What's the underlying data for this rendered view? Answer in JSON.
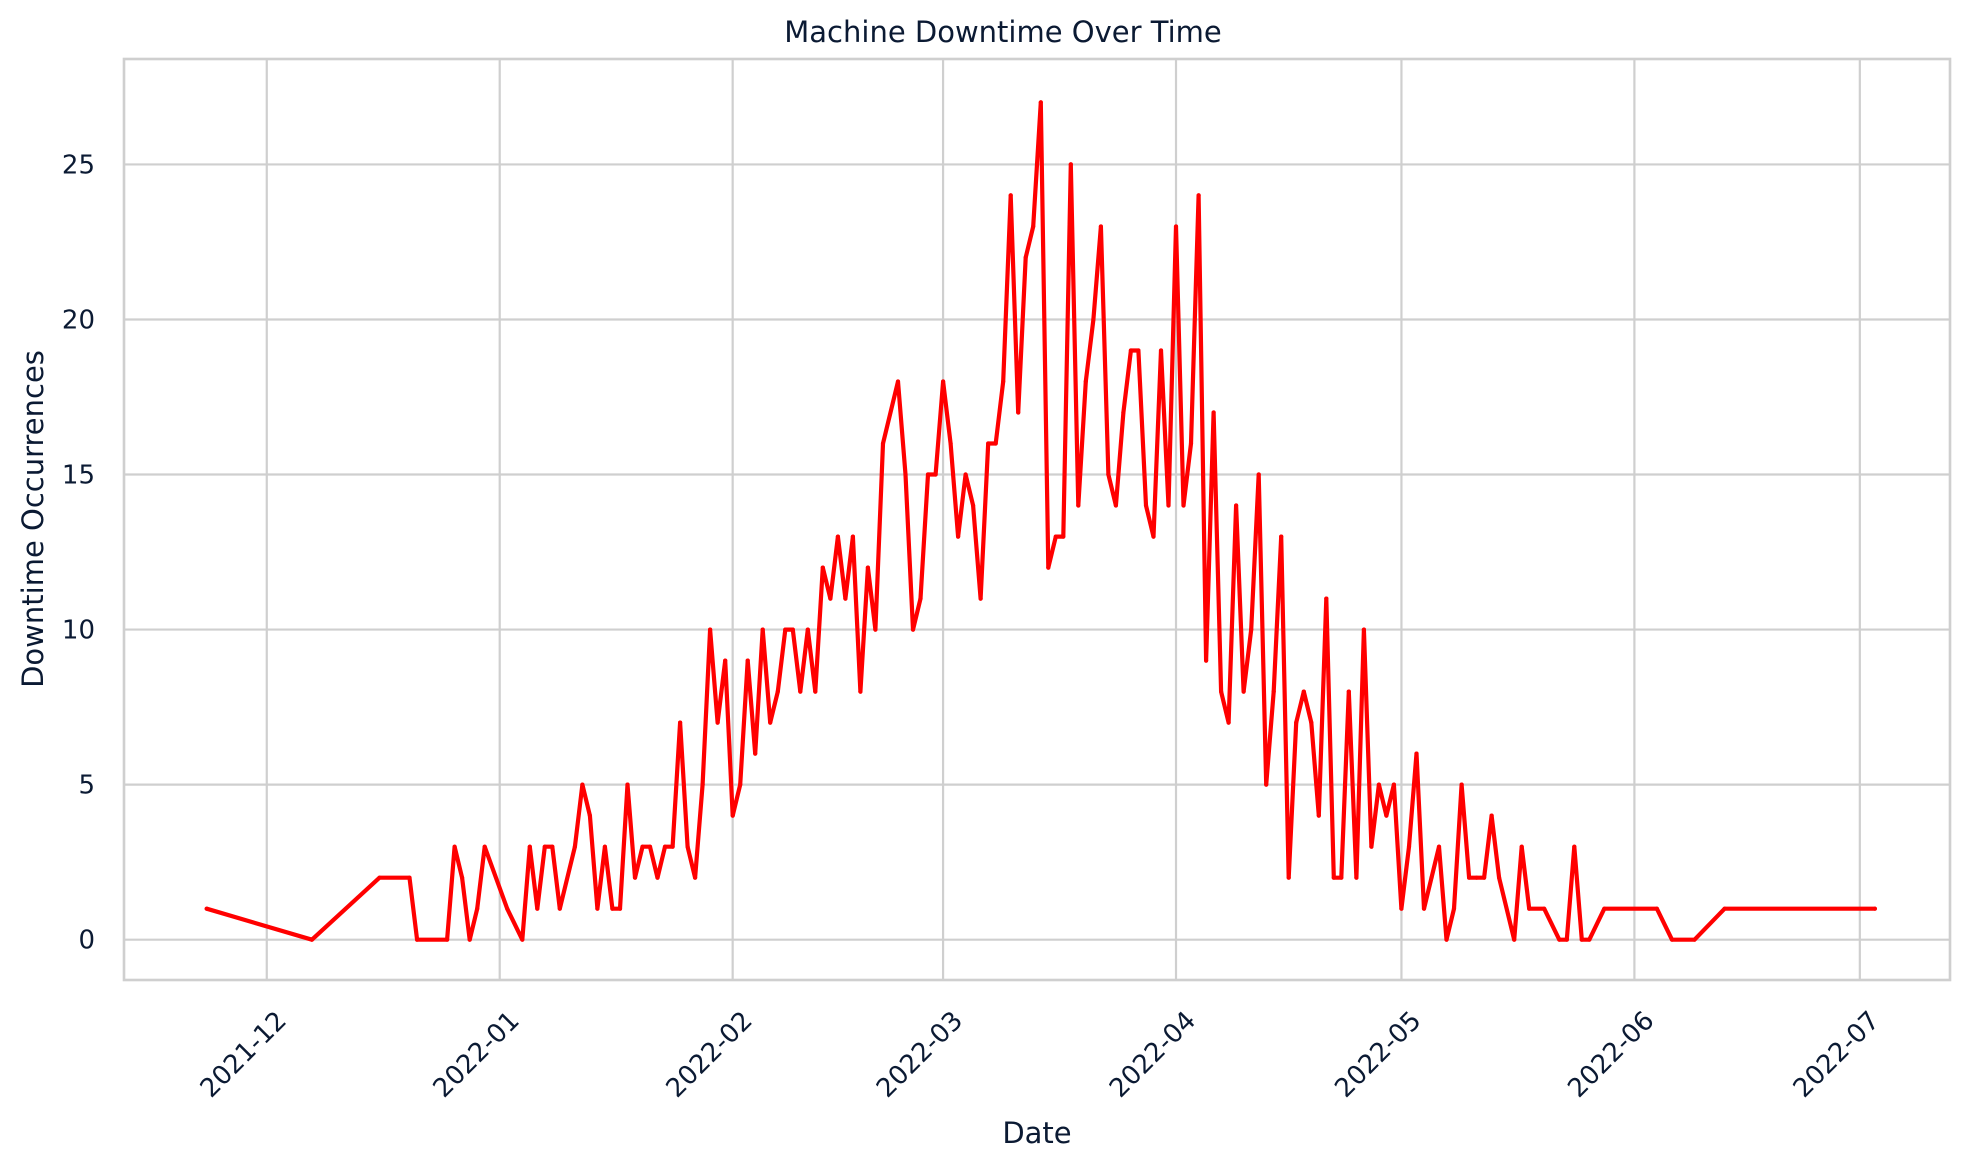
{
  "chart_data": {
    "type": "line",
    "title": "Machine Downtime Over Time",
    "xlabel": "Date",
    "ylabel": "Downtime Occurrences",
    "x_range": [
      "2021-11-12",
      "2022-07-13"
    ],
    "x_ticks": [
      {
        "date": "2021-12-01",
        "label": "2021-12"
      },
      {
        "date": "2022-01-01",
        "label": "2022-01"
      },
      {
        "date": "2022-02-01",
        "label": "2022-02"
      },
      {
        "date": "2022-03-01",
        "label": "2022-03"
      },
      {
        "date": "2022-04-01",
        "label": "2022-04"
      },
      {
        "date": "2022-05-01",
        "label": "2022-05"
      },
      {
        "date": "2022-06-01",
        "label": "2022-06"
      },
      {
        "date": "2022-07-01",
        "label": "2022-07"
      }
    ],
    "ylim": [
      -1.3,
      28.4
    ],
    "y_ticks": [
      0,
      5,
      10,
      15,
      20,
      25
    ],
    "grid": true,
    "series": [
      {
        "name": "Downtime Occurrences",
        "color": "#ff0000",
        "points": [
          [
            "2021-11-23",
            1
          ],
          [
            "2021-12-07",
            0
          ],
          [
            "2021-12-16",
            2
          ],
          [
            "2021-12-20",
            2
          ],
          [
            "2021-12-21",
            0
          ],
          [
            "2021-12-25",
            0
          ],
          [
            "2021-12-26",
            3
          ],
          [
            "2021-12-27",
            2
          ],
          [
            "2021-12-28",
            0
          ],
          [
            "2021-12-29",
            1
          ],
          [
            "2021-12-30",
            3
          ],
          [
            "2022-01-02",
            1
          ],
          [
            "2022-01-04",
            0
          ],
          [
            "2022-01-05",
            3
          ],
          [
            "2022-01-06",
            1
          ],
          [
            "2022-01-07",
            3
          ],
          [
            "2022-01-08",
            3
          ],
          [
            "2022-01-09",
            1
          ],
          [
            "2022-01-11",
            3
          ],
          [
            "2022-01-12",
            5
          ],
          [
            "2022-01-13",
            4
          ],
          [
            "2022-01-14",
            1
          ],
          [
            "2022-01-15",
            3
          ],
          [
            "2022-01-16",
            1
          ],
          [
            "2022-01-17",
            1
          ],
          [
            "2022-01-18",
            5
          ],
          [
            "2022-01-19",
            2
          ],
          [
            "2022-01-20",
            3
          ],
          [
            "2022-01-21",
            3
          ],
          [
            "2022-01-22",
            2
          ],
          [
            "2022-01-23",
            3
          ],
          [
            "2022-01-24",
            3
          ],
          [
            "2022-01-25",
            7
          ],
          [
            "2022-01-26",
            3
          ],
          [
            "2022-01-27",
            2
          ],
          [
            "2022-01-28",
            5
          ],
          [
            "2022-01-29",
            10
          ],
          [
            "2022-01-30",
            7
          ],
          [
            "2022-01-31",
            9
          ],
          [
            "2022-02-01",
            4
          ],
          [
            "2022-02-02",
            5
          ],
          [
            "2022-02-03",
            9
          ],
          [
            "2022-02-04",
            6
          ],
          [
            "2022-02-05",
            10
          ],
          [
            "2022-02-06",
            7
          ],
          [
            "2022-02-07",
            8
          ],
          [
            "2022-02-08",
            10
          ],
          [
            "2022-02-09",
            10
          ],
          [
            "2022-02-10",
            8
          ],
          [
            "2022-02-11",
            10
          ],
          [
            "2022-02-12",
            8
          ],
          [
            "2022-02-13",
            12
          ],
          [
            "2022-02-14",
            11
          ],
          [
            "2022-02-15",
            13
          ],
          [
            "2022-02-16",
            11
          ],
          [
            "2022-02-17",
            13
          ],
          [
            "2022-02-18",
            8
          ],
          [
            "2022-02-19",
            12
          ],
          [
            "2022-02-20",
            10
          ],
          [
            "2022-02-21",
            16
          ],
          [
            "2022-02-23",
            18
          ],
          [
            "2022-02-24",
            15
          ],
          [
            "2022-02-25",
            10
          ],
          [
            "2022-02-26",
            11
          ],
          [
            "2022-02-27",
            15
          ],
          [
            "2022-02-28",
            15
          ],
          [
            "2022-03-01",
            18
          ],
          [
            "2022-03-02",
            16
          ],
          [
            "2022-03-03",
            13
          ],
          [
            "2022-03-04",
            15
          ],
          [
            "2022-03-05",
            14
          ],
          [
            "2022-03-06",
            11
          ],
          [
            "2022-03-07",
            16
          ],
          [
            "2022-03-08",
            16
          ],
          [
            "2022-03-09",
            18
          ],
          [
            "2022-03-10",
            24
          ],
          [
            "2022-03-11",
            17
          ],
          [
            "2022-03-12",
            22
          ],
          [
            "2022-03-13",
            23
          ],
          [
            "2022-03-14",
            27
          ],
          [
            "2022-03-15",
            12
          ],
          [
            "2022-03-16",
            13
          ],
          [
            "2022-03-17",
            13
          ],
          [
            "2022-03-18",
            25
          ],
          [
            "2022-03-19",
            14
          ],
          [
            "2022-03-20",
            18
          ],
          [
            "2022-03-21",
            20
          ],
          [
            "2022-03-22",
            23
          ],
          [
            "2022-03-23",
            15
          ],
          [
            "2022-03-24",
            14
          ],
          [
            "2022-03-25",
            17
          ],
          [
            "2022-03-26",
            19
          ],
          [
            "2022-03-27",
            19
          ],
          [
            "2022-03-28",
            14
          ],
          [
            "2022-03-29",
            13
          ],
          [
            "2022-03-30",
            19
          ],
          [
            "2022-03-31",
            14
          ],
          [
            "2022-04-01",
            23
          ],
          [
            "2022-04-02",
            14
          ],
          [
            "2022-04-03",
            16
          ],
          [
            "2022-04-04",
            24
          ],
          [
            "2022-04-05",
            9
          ],
          [
            "2022-04-06",
            17
          ],
          [
            "2022-04-07",
            8
          ],
          [
            "2022-04-08",
            7
          ],
          [
            "2022-04-09",
            14
          ],
          [
            "2022-04-10",
            8
          ],
          [
            "2022-04-11",
            10
          ],
          [
            "2022-04-12",
            15
          ],
          [
            "2022-04-13",
            5
          ],
          [
            "2022-04-14",
            8
          ],
          [
            "2022-04-15",
            13
          ],
          [
            "2022-04-16",
            2
          ],
          [
            "2022-04-17",
            7
          ],
          [
            "2022-04-18",
            8
          ],
          [
            "2022-04-19",
            7
          ],
          [
            "2022-04-20",
            4
          ],
          [
            "2022-04-21",
            11
          ],
          [
            "2022-04-22",
            2
          ],
          [
            "2022-04-23",
            2
          ],
          [
            "2022-04-24",
            8
          ],
          [
            "2022-04-25",
            2
          ],
          [
            "2022-04-26",
            10
          ],
          [
            "2022-04-27",
            3
          ],
          [
            "2022-04-28",
            5
          ],
          [
            "2022-04-29",
            4
          ],
          [
            "2022-04-30",
            5
          ],
          [
            "2022-05-01",
            1
          ],
          [
            "2022-05-02",
            3
          ],
          [
            "2022-05-03",
            6
          ],
          [
            "2022-05-04",
            1
          ],
          [
            "2022-05-05",
            2
          ],
          [
            "2022-05-06",
            3
          ],
          [
            "2022-05-07",
            0
          ],
          [
            "2022-05-08",
            1
          ],
          [
            "2022-05-09",
            5
          ],
          [
            "2022-05-10",
            2
          ],
          [
            "2022-05-11",
            2
          ],
          [
            "2022-05-12",
            2
          ],
          [
            "2022-05-13",
            4
          ],
          [
            "2022-05-14",
            2
          ],
          [
            "2022-05-16",
            0
          ],
          [
            "2022-05-17",
            3
          ],
          [
            "2022-05-18",
            1
          ],
          [
            "2022-05-20",
            1
          ],
          [
            "2022-05-22",
            0
          ],
          [
            "2022-05-23",
            0
          ],
          [
            "2022-05-24",
            3
          ],
          [
            "2022-05-25",
            0
          ],
          [
            "2022-05-26",
            0
          ],
          [
            "2022-05-28",
            1
          ],
          [
            "2022-06-04",
            1
          ],
          [
            "2022-06-06",
            0
          ],
          [
            "2022-06-09",
            0
          ],
          [
            "2022-06-13",
            1
          ],
          [
            "2022-07-03",
            1
          ]
        ]
      }
    ]
  }
}
